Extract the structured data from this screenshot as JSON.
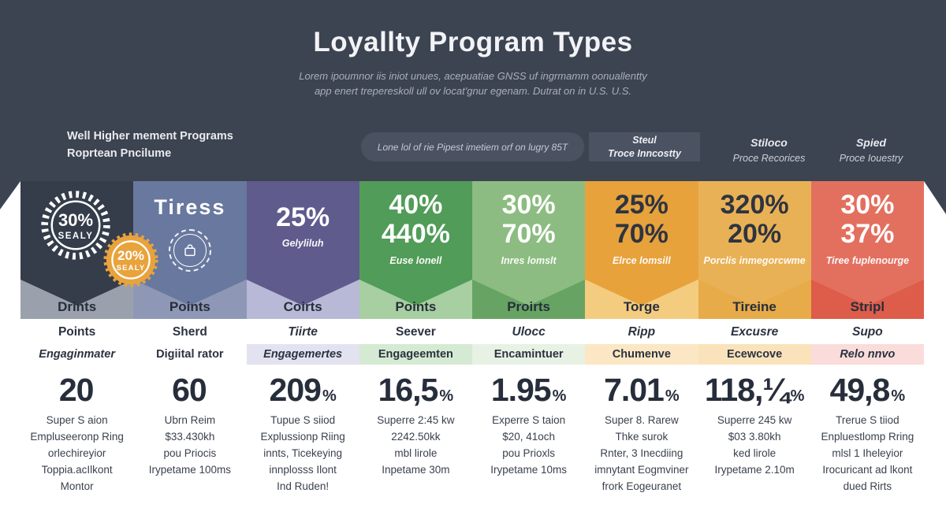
{
  "title": "Loyallty Program Types",
  "subtitle": [
    "Lorem ipoumnor iis iniot unues, acepuatiae GNSS uf ingrmamm oonuallentty",
    "app enert trepereskoll ull ov locat'gnur egenam. Dutrat on in U.S. U.S."
  ],
  "header": {
    "left": [
      "Well Higher mement Programs",
      "Roprtean Pncilume"
    ],
    "pill": "Lone lol of rie Pipest imetiem orf on lugry 85T",
    "badge": [
      "Steul",
      "Troce Inncostty"
    ],
    "right1": {
      "title": "Stiloco",
      "sub": "Proce Recorices"
    },
    "right2": {
      "title": "Spied",
      "sub": "Proce Iouestry"
    }
  },
  "columns": [
    {
      "label": "Drints",
      "name": "Points",
      "name_italic": false,
      "sub": "Engaginmater",
      "sub_italic": true,
      "stat": "20",
      "stat_pct": "",
      "desc": [
        "Super S aion",
        "Empluseeronp Ring",
        "orlechireyior",
        "Toppia.acIlkont",
        "Montor"
      ],
      "badge1": {
        "big": "30%",
        "small": "SEALY"
      },
      "badge2": {
        "big": "20%",
        "small": "SEALY"
      },
      "colors": {
        "banner": "#353c4a",
        "label": "#9ba1ac",
        "strip": "#ffffff",
        "big": "#ffffff"
      }
    },
    {
      "label": "Points",
      "name": "Sherd",
      "name_italic": false,
      "sub": "Digiital rator",
      "sub_italic": false,
      "stat": "60",
      "stat_pct": "",
      "desc": [
        "Ubrn Reim",
        "$33.430kh",
        "pou Priocis",
        "Irypetame 100ms"
      ],
      "banner_title": "Tiress",
      "colors": {
        "banner": "#68789e",
        "label": "#8e97b6",
        "strip": "#ffffff",
        "big": "#ffffff"
      }
    },
    {
      "label": "Coirts",
      "name": "Tiirte",
      "name_italic": true,
      "sub": "Engagemertes",
      "sub_italic": true,
      "stat": "209",
      "stat_pct": "%",
      "desc": [
        "Tupue S siiod",
        "Explussionp Riing",
        "innts, Ticekeying",
        "innplosss Ilont",
        "Ind Ruden!"
      ],
      "big": [
        "25%"
      ],
      "small": "Gelyliluh",
      "colors": {
        "banner": "#5f5b8d",
        "label": "#b8b9d6",
        "strip": "#e3e2f0",
        "big": "#ffffff"
      }
    },
    {
      "label": "Points",
      "name": "Seever",
      "name_italic": false,
      "sub": "Engageemten",
      "sub_italic": false,
      "stat": "16,5",
      "stat_pct": "%",
      "desc": [
        "Superre 2:45 kw",
        "2242.50kk",
        "mbl lirole",
        "Inpetame 30m"
      ],
      "big": [
        "40%",
        "440%"
      ],
      "small": "Euse lonell",
      "colors": {
        "banner": "#519c58",
        "label": "#a7cfa1",
        "strip": "#d5ead2",
        "big": "#ffffff"
      }
    },
    {
      "label": "Proirts",
      "name": "Ulocc",
      "name_italic": true,
      "sub": "Encamintuer",
      "sub_italic": false,
      "stat": "1.95",
      "stat_pct": "%",
      "desc": [
        "Experre S taion",
        "$20, 41och",
        "pou Prioxls",
        "Irypetame 10ms"
      ],
      "big": [
        "30%",
        "70%"
      ],
      "small": "Inres lomslt",
      "colors": {
        "banner": "#8cbc81",
        "label": "#67a463",
        "strip": "#e7f2e4",
        "big": "#ffffff"
      }
    },
    {
      "label": "Torge",
      "name": "Ripp",
      "name_italic": true,
      "sub": "Chumenve",
      "sub_italic": false,
      "stat": "7.01",
      "stat_pct": "%",
      "desc": [
        "Super 8. Rarew",
        "Thke surok",
        "Rnter, 3 Inecdiing",
        "imnytant Eogmviner",
        "frork Eogeuranet"
      ],
      "big": [
        "25%",
        "70%"
      ],
      "small": "Elrce lomsill",
      "colors": {
        "banner": "#e7a23c",
        "label": "#f4cc7f",
        "strip": "#fbe7c3",
        "big": "#2e3440"
      }
    },
    {
      "label": "Tireine",
      "name": "Excusre",
      "name_italic": true,
      "sub": "Ecewcove",
      "sub_italic": false,
      "stat": "118,¼",
      "stat_pct": "%",
      "desc": [
        "Superre 245 kw",
        "$03 3.80kh",
        "ked lirole",
        "Irypetame 2.10m"
      ],
      "big": [
        "320%",
        "20%"
      ],
      "small": "Porclis inmegorcwme",
      "colors": {
        "banner": "#e9b155",
        "label": "#e7ab49",
        "strip": "#fae3ba",
        "big": "#2e3440"
      }
    },
    {
      "label": "Stripl",
      "name": "Supo",
      "name_italic": true,
      "sub": "Relo nnvo",
      "sub_italic": true,
      "stat": "49,8",
      "stat_pct": "%",
      "desc": [
        "Trerue S tiiod",
        "Enpluestlomp Rring",
        "mlsl 1 Iheleyior",
        "Irocuricant ad lkont",
        "dued Rirts"
      ],
      "big": [
        "30%",
        "37%"
      ],
      "small": "Tiree fuplenourge",
      "colors": {
        "banner": "#e3705f",
        "label": "#dd5c4a",
        "strip": "#fadcdb",
        "big": "#ffffff"
      }
    }
  ]
}
